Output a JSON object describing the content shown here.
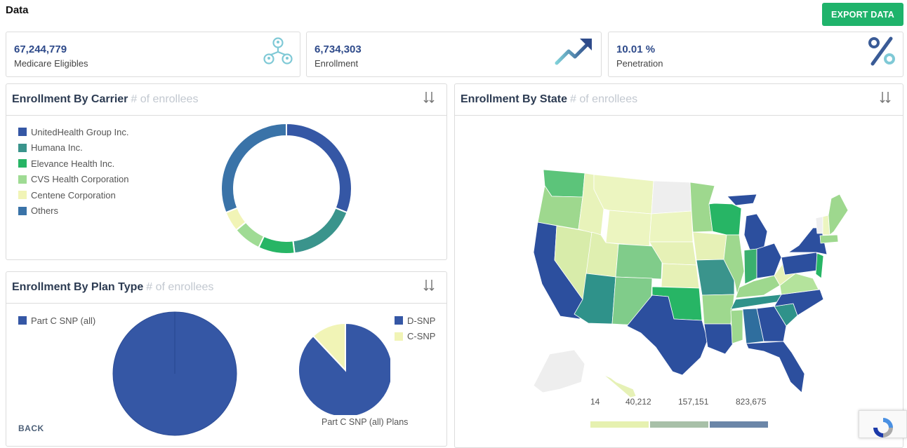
{
  "page": {
    "title": "Data",
    "export_label": "EXPORT DATA"
  },
  "kpis": [
    {
      "value": "67,244,779",
      "label": "Medicare Eligibles",
      "icon": "people-network-icon"
    },
    {
      "value": "6,734,303",
      "label": "Enrollment",
      "icon": "trend-up-arrow-icon"
    },
    {
      "value": "10.01 %",
      "label": "Penetration",
      "icon": "percent-icon"
    }
  ],
  "carrier_panel": {
    "title": "Enrollment By Carrier",
    "subtitle": "# of enrollees",
    "legend": [
      {
        "label": "UnitedHealth Group Inc.",
        "color": "#3557a5"
      },
      {
        "label": "Humana Inc.",
        "color": "#3a948c"
      },
      {
        "label": "Elevance Health Inc.",
        "color": "#27b565"
      },
      {
        "label": "CVS Health Corporation",
        "color": "#9fdb94"
      },
      {
        "label": "Centene Corporation",
        "color": "#f1f4b6"
      },
      {
        "label": "Others",
        "color": "#3a73a8"
      }
    ]
  },
  "plan_panel": {
    "title": "Enrollment By Plan Type",
    "subtitle": "# of enrollees",
    "legend_left": [
      {
        "label": "Part C SNP (all)",
        "color": "#3557a5"
      }
    ],
    "legend_right": [
      {
        "label": "D-SNP",
        "color": "#3557a5"
      },
      {
        "label": "C-SNP",
        "color": "#f1f4b6"
      }
    ],
    "back_label": "BACK",
    "pie_caption": "Part C SNP (all) Plans"
  },
  "state_panel": {
    "title": "Enrollment By State",
    "subtitle": "# of enrollees",
    "scale_labels": [
      "14",
      "40,212",
      "157,151",
      "823,675"
    ],
    "scale_colors": [
      "#e6f1b0",
      "#a8c0a8",
      "#6b86a8",
      "#2c4f9e"
    ]
  },
  "chart_data": [
    {
      "type": "pie",
      "title": "Enrollment By Carrier",
      "subtitle": "# of enrollees",
      "categories": [
        "UnitedHealth Group Inc.",
        "Humana Inc.",
        "Elevance Health Inc.",
        "CVS Health Corporation",
        "Centene Corporation",
        "Others"
      ],
      "values": [
        31,
        17,
        9,
        7,
        5,
        31
      ],
      "colors": [
        "#3557a5",
        "#3a948c",
        "#27b565",
        "#9fdb94",
        "#f1f4b6",
        "#3a73a8"
      ],
      "donut": true
    },
    {
      "type": "pie",
      "title": "Enrollment By Plan Type",
      "categories": [
        "Part C SNP (all)"
      ],
      "values": [
        100
      ],
      "colors": [
        "#3557a5"
      ]
    },
    {
      "type": "pie",
      "title": "Part C SNP (all) Plans",
      "categories": [
        "D-SNP",
        "C-SNP"
      ],
      "values": [
        88,
        12
      ],
      "colors": [
        "#3557a5",
        "#f1f4b6"
      ]
    }
  ]
}
